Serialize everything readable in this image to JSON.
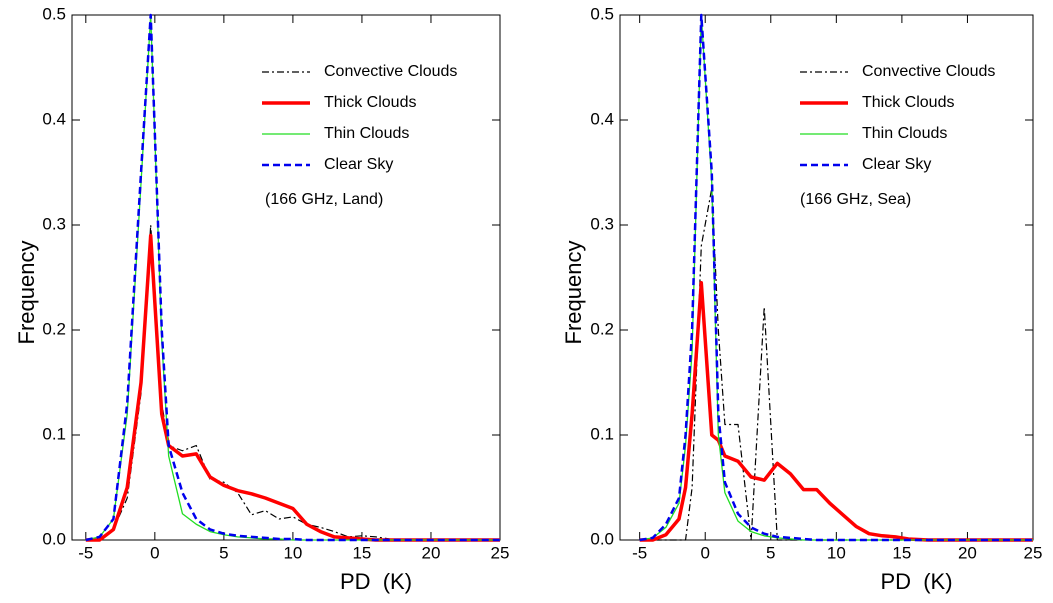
{
  "chart_data": [
    {
      "type": "line",
      "xlabel": "PD  (K)",
      "ylabel": "Frequency",
      "annotation": "(166 GHz, Land)",
      "xlim": [
        -6,
        25
      ],
      "ylim": [
        0,
        0.5
      ],
      "xticks": [
        -5,
        0,
        5,
        10,
        15,
        20,
        25
      ],
      "yticks": [
        {
          "value": 0,
          "label": "0.0"
        },
        0.1,
        0.2,
        0.3,
        0.4,
        0.5
      ],
      "x": [
        -5,
        -4,
        -3,
        -2,
        -1,
        -0.3,
        0.5,
        1,
        2,
        3,
        4,
        5,
        6,
        7,
        8,
        9,
        10,
        11,
        12,
        13,
        14,
        15,
        16,
        17,
        18,
        19,
        20,
        25
      ],
      "series": [
        {
          "name": "Convective Clouds",
          "color": "#000000",
          "style": "dash-dot",
          "values": [
            0,
            0,
            0.01,
            0.04,
            0.14,
            0.3,
            0.13,
            0.09,
            0.085,
            0.09,
            0.058,
            0.055,
            0.045,
            0.024,
            0.028,
            0.02,
            0.022,
            0.015,
            0.012,
            0.008,
            0.003,
            0.004,
            0.003,
            0.001,
            0,
            0,
            0,
            0
          ]
        },
        {
          "name": "Thick Clouds",
          "color": "#ff0000",
          "style": "thick",
          "values": [
            0,
            0,
            0.01,
            0.05,
            0.15,
            0.29,
            0.12,
            0.09,
            0.08,
            0.082,
            0.06,
            0.052,
            0.047,
            0.044,
            0.04,
            0.035,
            0.03,
            0.015,
            0.008,
            0.003,
            0.002,
            0.001,
            0,
            0,
            0,
            0,
            0,
            0
          ]
        },
        {
          "name": "Thin Clouds",
          "color": "#22dd22",
          "style": "solid",
          "values": [
            0,
            0.003,
            0.02,
            0.12,
            0.34,
            0.5,
            0.19,
            0.08,
            0.025,
            0.015,
            0.008,
            0.005,
            0.003,
            0.002,
            0.001,
            0.001,
            0,
            0,
            0,
            0,
            0,
            0,
            0,
            0,
            0,
            0,
            0,
            0
          ]
        },
        {
          "name": "Clear Sky",
          "color": "#0000ee",
          "style": "dash",
          "values": [
            0,
            0.003,
            0.02,
            0.13,
            0.35,
            0.5,
            0.2,
            0.09,
            0.045,
            0.02,
            0.01,
            0.006,
            0.004,
            0.003,
            0.002,
            0.001,
            0.001,
            0,
            0,
            0,
            0,
            0,
            0,
            0,
            0,
            0,
            0,
            0
          ]
        }
      ]
    },
    {
      "type": "line",
      "xlabel": "PD  (K)",
      "ylabel": "Frequency",
      "annotation": "(166 GHz, Sea)",
      "xlim": [
        -6.5,
        25
      ],
      "ylim": [
        0,
        0.5
      ],
      "xticks": [
        -5,
        0,
        5,
        10,
        15,
        20,
        25
      ],
      "yticks": [
        {
          "value": 0,
          "label": "0.0"
        },
        0.1,
        0.2,
        0.3,
        0.4,
        0.5
      ],
      "x": [
        -5,
        -4,
        -3,
        -2,
        -1.5,
        -1,
        -0.3,
        0.5,
        1,
        1.5,
        2.5,
        3.5,
        4.5,
        5.5,
        6.5,
        7.5,
        8.5,
        9.5,
        10.5,
        11.5,
        12.5,
        13.5,
        14.5,
        15.5,
        17,
        19,
        21,
        25
      ],
      "series": [
        {
          "name": "Convective Clouds",
          "color": "#000000",
          "style": "dash-dot",
          "values": [
            0,
            0,
            0,
            0,
            0,
            0.05,
            0.28,
            0.335,
            0.2,
            0.11,
            0.11,
            0,
            0.222,
            0,
            0,
            0,
            0,
            0,
            0,
            0,
            0,
            0,
            0,
            0,
            0,
            0,
            0,
            0
          ]
        },
        {
          "name": "Thick Clouds",
          "color": "#ff0000",
          "style": "thick",
          "values": [
            0,
            0,
            0.005,
            0.02,
            0.05,
            0.12,
            0.245,
            0.1,
            0.095,
            0.08,
            0.075,
            0.06,
            0.057,
            0.073,
            0.063,
            0.048,
            0.048,
            0.035,
            0.024,
            0.013,
            0.006,
            0.004,
            0.003,
            0.001,
            0,
            0,
            0,
            0
          ]
        },
        {
          "name": "Thin Clouds",
          "color": "#22dd22",
          "style": "solid",
          "values": [
            0,
            0.002,
            0.012,
            0.035,
            0.09,
            0.18,
            0.5,
            0.34,
            0.1,
            0.045,
            0.018,
            0.008,
            0.004,
            0.002,
            0.001,
            0,
            0,
            0,
            0,
            0,
            0,
            0,
            0,
            0,
            0,
            0,
            0,
            0
          ]
        },
        {
          "name": "Clear Sky",
          "color": "#0000ee",
          "style": "dash",
          "values": [
            0,
            0.002,
            0.015,
            0.04,
            0.1,
            0.2,
            0.5,
            0.35,
            0.12,
            0.055,
            0.025,
            0.012,
            0.006,
            0.003,
            0.002,
            0.001,
            0,
            0,
            0,
            0,
            0,
            0,
            0,
            0,
            0,
            0,
            0,
            0
          ]
        }
      ]
    }
  ]
}
